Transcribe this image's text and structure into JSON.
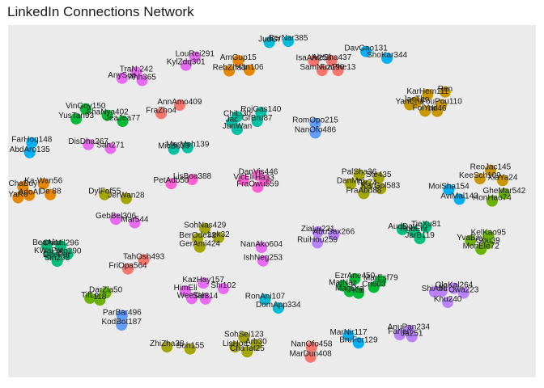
{
  "chart_data": {
    "type": "scatter",
    "title": "LinkedIn Connections Network",
    "xlabel": "",
    "ylabel": "",
    "xlim": [
      0,
      100
    ],
    "ylim": [
      0,
      100
    ],
    "grid": false,
    "legend": "none",
    "panel_color": "#ebebeb",
    "groups": [
      {
        "color": "#f8766d",
        "nodes": [
          {
            "label": "AnnAmo409",
            "x": 32.5,
            "y": 77.3
          },
          {
            "label": "FraZho4",
            "x": 29.0,
            "y": 74.9
          },
          {
            "label": "TahOsh493",
            "x": 25.7,
            "y": 33.4
          },
          {
            "label": "FriOpa564",
            "x": 22.7,
            "y": 30.8
          },
          {
            "label": "IsaAlv258",
            "x": 57.9,
            "y": 89.8
          },
          {
            "label": "AleSha437",
            "x": 61.3,
            "y": 89.9
          },
          {
            "label": "SamNuz190",
            "x": 59.5,
            "y": 87.1
          },
          {
            "label": "FraPhe13",
            "x": 62.5,
            "y": 87.1
          },
          {
            "label": "NanOfo458",
            "x": 57.5,
            "y": 8.6
          },
          {
            "label": "MarDun408",
            "x": 57.3,
            "y": 5.8
          }
        ]
      },
      {
        "color": "#e58700",
        "nodes": [
          {
            "label": "AmGup15",
            "x": 43.6,
            "y": 89.9
          },
          {
            "label": "RebZha3",
            "x": 41.9,
            "y": 87.0
          },
          {
            "label": "Han106",
            "x": 45.7,
            "y": 87.2
          },
          {
            "label": "ChaBuy",
            "x": 2.8,
            "y": 54.1
          },
          {
            "label": "Ka-Wan56",
            "x": 6.7,
            "y": 54.9
          },
          {
            "label": "AdoAl",
            "x": 4.0,
            "y": 51.7
          },
          {
            "label": "YaRo",
            "x": 1.9,
            "y": 51.0
          },
          {
            "label": "De 88",
            "x": 8.0,
            "y": 51.9
          }
        ]
      },
      {
        "color": "#c99800",
        "nodes": [
          {
            "label": "KarHem111",
            "x": 79.5,
            "y": 80.3
          },
          {
            "label": "Ren",
            "x": 82.8,
            "y": 81.0
          },
          {
            "label": "JacTho",
            "x": 77.3,
            "y": 78.1
          },
          {
            "label": "YanCha",
            "x": 76.1,
            "y": 77.4
          },
          {
            "label": "FouPou110",
            "x": 82.1,
            "y": 77.4
          },
          {
            "label": "FolYao",
            "x": 79.0,
            "y": 75.6
          },
          {
            "label": "Hil46",
            "x": 81.3,
            "y": 75.5
          },
          {
            "label": "ReoJac145",
            "x": 91.4,
            "y": 58.8
          },
          {
            "label": "KeeSch109",
            "x": 89.4,
            "y": 56.4
          },
          {
            "label": "XiaYa24",
            "x": 93.7,
            "y": 55.9
          }
        ]
      },
      {
        "color": "#a3a500",
        "nodes": [
          {
            "label": "PalSha36",
            "x": 66.5,
            "y": 57.5
          },
          {
            "label": "Ste435",
            "x": 70.2,
            "y": 56.6
          },
          {
            "label": "DanMei",
            "x": 64.9,
            "y": 54.9
          },
          {
            "label": "Tur74",
            "x": 67.9,
            "y": 54.4
          },
          {
            "label": "KarGol583",
            "x": 70.6,
            "y": 53.6
          },
          {
            "label": "FraAbd88",
            "x": 67.4,
            "y": 52.2
          },
          {
            "label": "DylFof55",
            "x": 18.3,
            "y": 51.9
          },
          {
            "label": "JerWan28",
            "x": 22.4,
            "y": 50.8
          },
          {
            "label": "SohNas429",
            "x": 37.3,
            "y": 42.3
          },
          {
            "label": "BerOde32",
            "x": 35.9,
            "y": 39.4
          },
          {
            "label": "Lek32",
            "x": 39.9,
            "y": 39.7
          },
          {
            "label": "GerAmi424",
            "x": 36.3,
            "y": 37.0
          },
          {
            "label": "ZhiZha38",
            "x": 30.1,
            "y": 8.7
          },
          {
            "label": "Soh155",
            "x": 34.5,
            "y": 8.1
          },
          {
            "label": "SohSei123",
            "x": 44.7,
            "y": 11.4
          },
          {
            "label": "LisHon",
            "x": 43.0,
            "y": 8.7
          },
          {
            "label": "Arb30",
            "x": 47.0,
            "y": 9.3
          },
          {
            "label": "ChaTat25",
            "x": 45.3,
            "y": 7.3
          }
        ]
      },
      {
        "color": "#6bb100",
        "nodes": [
          {
            "label": "DarZla50",
            "x": 18.5,
            "y": 24.0
          },
          {
            "label": "TifLo",
            "x": 15.5,
            "y": 22.5
          },
          {
            "label": "118",
            "x": 17.4,
            "y": 22.0
          },
          {
            "label": "GheMar542",
            "x": 94.0,
            "y": 52.1
          },
          {
            "label": "HonHao74",
            "x": 91.7,
            "y": 50.1
          },
          {
            "label": "KelKao95",
            "x": 91.0,
            "y": 40.2
          },
          {
            "label": "YvaBay",
            "x": 87.6,
            "y": 38.8
          },
          {
            "label": "Gou39",
            "x": 90.9,
            "y": 38.0
          },
          {
            "label": "MonEle72",
            "x": 89.6,
            "y": 36.4
          }
        ]
      },
      {
        "color": "#00ba38",
        "nodes": [
          {
            "label": "VinGov150",
            "x": 14.7,
            "y": 76.2
          },
          {
            "label": "ShaNya402",
            "x": 18.8,
            "y": 74.4
          },
          {
            "label": "YusTan93",
            "x": 12.9,
            "y": 73.4
          },
          {
            "label": "JeaJea77",
            "x": 21.7,
            "y": 72.7
          },
          {
            "label": "EzrAne450",
            "x": 65.7,
            "y": 28.0
          },
          {
            "label": "MarEsf79",
            "x": 70.6,
            "y": 27.4
          },
          {
            "label": "MatNaz",
            "x": 63.4,
            "y": 26.0
          },
          {
            "label": "Cri603",
            "x": 69.3,
            "y": 25.6
          },
          {
            "label": "MagDra",
            "x": 64.7,
            "y": 24.4
          },
          {
            "label": "Kai",
            "x": 66.4,
            "y": 23.9
          }
        ]
      },
      {
        "color": "#00bf7d",
        "nodes": [
          {
            "label": "BeaAlm",
            "x": 7.3,
            "y": 37.4
          },
          {
            "label": "ChiMil296",
            "x": 10.0,
            "y": 37.3
          },
          {
            "label": "KWaPat",
            "x": 7.7,
            "y": 35.1
          },
          {
            "label": "Yen290",
            "x": 11.3,
            "y": 35.0
          },
          {
            "label": "DeePer",
            "x": 9.2,
            "y": 33.9
          },
          {
            "label": "Sin298",
            "x": 9.3,
            "y": 33.0
          },
          {
            "label": "AudDav",
            "x": 74.7,
            "y": 42.0
          },
          {
            "label": "TieXu81",
            "x": 79.2,
            "y": 42.7
          },
          {
            "label": "RobEnr",
            "x": 76.9,
            "y": 41.3
          },
          {
            "label": "JarB119",
            "x": 78.0,
            "y": 39.4
          }
        ]
      },
      {
        "color": "#00c1a3",
        "nodes": [
          {
            "label": "RojGas140",
            "x": 47.9,
            "y": 75.2
          },
          {
            "label": "ChiLi30",
            "x": 43.4,
            "y": 74.0
          },
          {
            "label": "Jac",
            "x": 42.4,
            "y": 72.4
          },
          {
            "label": "GrBru87",
            "x": 47.2,
            "y": 72.7
          },
          {
            "label": "JunWan",
            "x": 43.4,
            "y": 70.4
          },
          {
            "label": "MicBu39",
            "x": 31.4,
            "y": 64.8
          },
          {
            "label": "MerMeh139",
            "x": 34.0,
            "y": 65.2
          }
        ]
      },
      {
        "color": "#00bcd8",
        "nodes": [
          {
            "label": "JudGr",
            "x": 49.5,
            "y": 95.1
          },
          {
            "label": "BerNar385",
            "x": 53.1,
            "y": 95.4
          },
          {
            "label": "RonAni107",
            "x": 48.7,
            "y": 22.1
          },
          {
            "label": "DomApp334",
            "x": 51.2,
            "y": 19.7
          }
        ]
      },
      {
        "color": "#00b0f6",
        "nodes": [
          {
            "label": "DavGao131",
            "x": 67.8,
            "y": 92.5
          },
          {
            "label": "ShoKar344",
            "x": 71.8,
            "y": 90.6
          },
          {
            "label": "FarHoq148",
            "x": 4.5,
            "y": 66.6
          },
          {
            "label": "AbdAro135",
            "x": 4.1,
            "y": 63.8
          },
          {
            "label": "MoiSha154",
            "x": 83.5,
            "y": 53.3
          },
          {
            "label": "AviMal143",
            "x": 85.5,
            "y": 50.6
          },
          {
            "label": "MarNir117",
            "x": 64.5,
            "y": 11.9
          },
          {
            "label": "BruFor129",
            "x": 66.4,
            "y": 9.8
          }
        ]
      },
      {
        "color": "#619cff",
        "nodes": [
          {
            "label": "ParBar496",
            "x": 21.6,
            "y": 17.6
          },
          {
            "label": "KodBot187",
            "x": 21.5,
            "y": 14.9
          },
          {
            "label": "RomOpo215",
            "x": 58.2,
            "y": 72.1
          },
          {
            "label": "NanOfo486",
            "x": 58.2,
            "y": 69.4
          }
        ]
      },
      {
        "color": "#b983ff",
        "nodes": [
          {
            "label": "ZiaLu221",
            "x": 58.7,
            "y": 41.3
          },
          {
            "label": "AbuSax266",
            "x": 61.7,
            "y": 40.5
          },
          {
            "label": "RuiHou259",
            "x": 58.6,
            "y": 38.2
          },
          {
            "label": "OlaKal264",
            "x": 84.5,
            "y": 25.3
          },
          {
            "label": "ShiAbd",
            "x": 80.8,
            "y": 24.3
          },
          {
            "label": "Yi",
            "x": 82.2,
            "y": 24.5
          },
          {
            "label": "Owa223",
            "x": 86.3,
            "y": 24.0
          },
          {
            "label": "Khu240",
            "x": 83.3,
            "y": 21.3
          },
          {
            "label": "AnuPan234",
            "x": 75.9,
            "y": 13.4
          },
          {
            "label": "FarIan",
            "x": 74.2,
            "y": 12.1
          },
          {
            "label": "Ja251",
            "x": 76.5,
            "y": 11.6
          }
        ]
      },
      {
        "color": "#e76bf3",
        "nodes": [
          {
            "label": "LouRei291",
            "x": 35.4,
            "y": 90.9
          },
          {
            "label": "KylZdq301",
            "x": 33.7,
            "y": 88.6
          },
          {
            "label": "TraN.242",
            "x": 24.3,
            "y": 86.6
          },
          {
            "label": "AnySee",
            "x": 21.6,
            "y": 84.9
          },
          {
            "label": "Ahh365",
            "x": 25.4,
            "y": 84.3
          },
          {
            "label": "DisDha267",
            "x": 15.2,
            "y": 66.1
          },
          {
            "label": "Sah271",
            "x": 19.4,
            "y": 65.0
          },
          {
            "label": "GebBel306",
            "x": 20.4,
            "y": 44.9
          },
          {
            "label": "Mar544",
            "x": 24.0,
            "y": 43.9
          },
          {
            "label": "KazHay157",
            "x": 37.0,
            "y": 26.8
          },
          {
            "label": "HimEli",
            "x": 33.6,
            "y": 24.5
          },
          {
            "label": "Shi102",
            "x": 40.8,
            "y": 25.2
          },
          {
            "label": "WeeTah",
            "x": 34.8,
            "y": 22.4
          },
          {
            "label": "Sle314",
            "x": 37.4,
            "y": 22.3
          },
          {
            "label": "NanAko604",
            "x": 48.0,
            "y": 36.9
          },
          {
            "label": "IshNeg253",
            "x": 48.3,
            "y": 33.1
          }
        ]
      },
      {
        "color": "#fd61d1",
        "nodes": [
          {
            "label": "DanVis446",
            "x": 47.4,
            "y": 57.4
          },
          {
            "label": "VicEli",
            "x": 44.6,
            "y": 56.0
          },
          {
            "label": "Ha33",
            "x": 48.6,
            "y": 55.9
          },
          {
            "label": "FraOwu559",
            "x": 47.3,
            "y": 54.0
          },
          {
            "label": "LisBoa388",
            "x": 34.9,
            "y": 56.2
          },
          {
            "label": "PetAdb50",
            "x": 30.9,
            "y": 55.0
          }
        ]
      },
      {
        "color": "#ff67a4",
        "nodes": []
      }
    ]
  }
}
